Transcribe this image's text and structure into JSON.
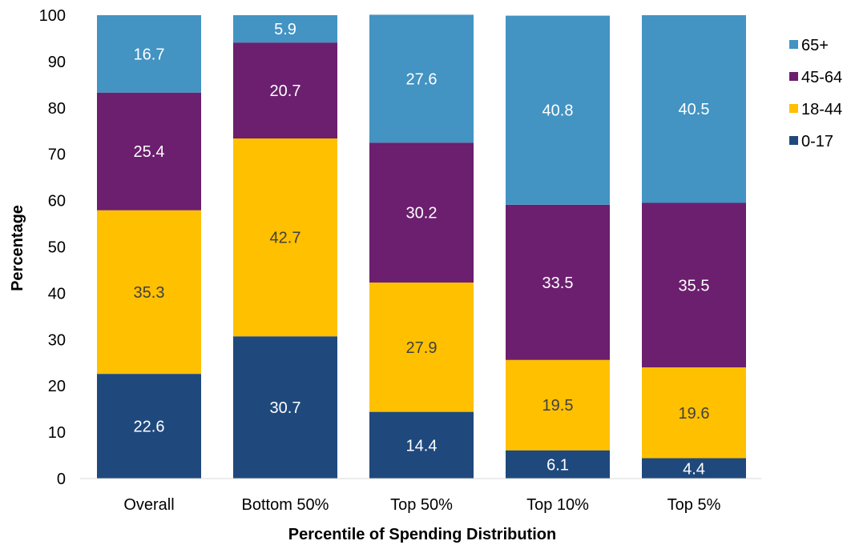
{
  "chart_data": {
    "type": "bar",
    "stacked": true,
    "title": "",
    "xlabel": "Percentile of Spending Distribution",
    "ylabel": "Percentage",
    "ylim": [
      0,
      100
    ],
    "yticks": [
      0,
      10,
      20,
      30,
      40,
      50,
      60,
      70,
      80,
      90,
      100
    ],
    "grid": false,
    "legend_position": "right",
    "categories": [
      "Overall",
      "Bottom 50%",
      "Top 50%",
      "Top 10%",
      "Top 5%"
    ],
    "series": [
      {
        "name": "0-17",
        "color": "#1f497d",
        "label_color": "#ffffff",
        "values": [
          22.6,
          30.7,
          14.4,
          6.1,
          4.4
        ]
      },
      {
        "name": "18-44",
        "color": "#ffc000",
        "label_color": "#404040",
        "values": [
          35.3,
          42.7,
          27.9,
          19.5,
          19.6
        ]
      },
      {
        "name": "45-64",
        "color": "#6b1f6e",
        "label_color": "#ffffff",
        "values": [
          25.4,
          20.7,
          30.2,
          33.5,
          35.5
        ]
      },
      {
        "name": "65+",
        "color": "#4393c3",
        "label_color": "#ffffff",
        "values": [
          16.7,
          5.9,
          27.6,
          40.8,
          40.5
        ]
      }
    ],
    "legend_order": [
      "65+",
      "45-64",
      "18-44",
      "0-17"
    ]
  }
}
